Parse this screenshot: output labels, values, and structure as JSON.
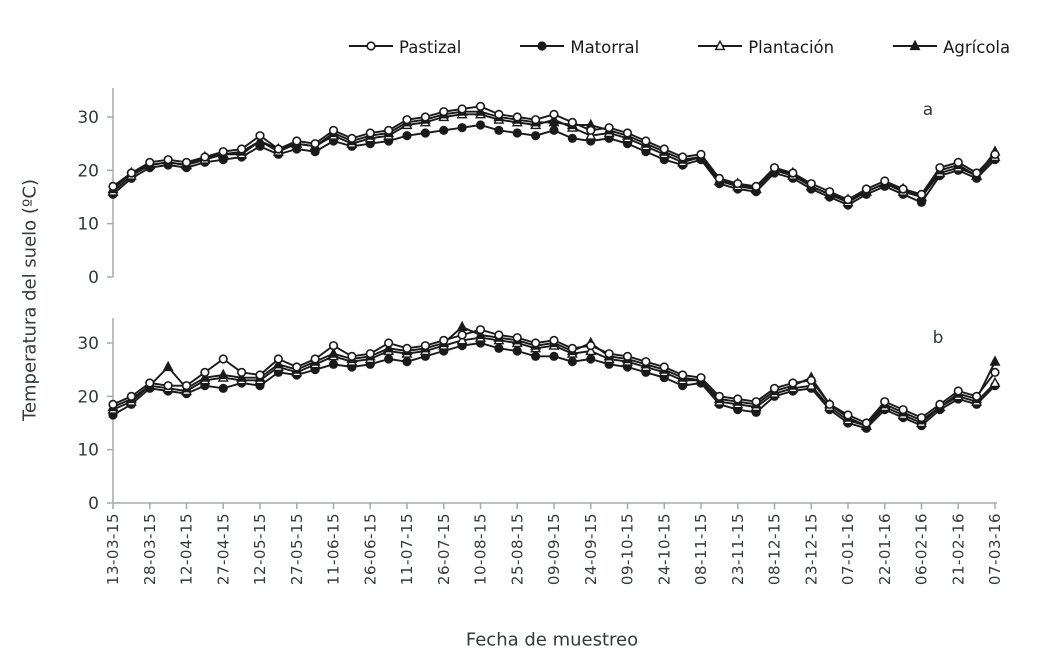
{
  "header": {
    "y_axis_label": "Temperatura del suelo (ºC)",
    "x_axis_label": "Fecha de muestreo"
  },
  "legend": {
    "items": [
      {
        "label": "Pastizal",
        "marker": "circle-open"
      },
      {
        "label": "Matorral",
        "marker": "circle-filled"
      },
      {
        "label": "Plantación",
        "marker": "triangle-open"
      },
      {
        "label": "Agrícola",
        "marker": "triangle-filled"
      }
    ]
  },
  "colors": {
    "line": "#1a1a1a",
    "text": "#323a3a",
    "axis": "#a5abab"
  },
  "chart_data": [
    {
      "type": "line",
      "panel_label": "a",
      "ylabel": "Temperatura del suelo (ºC)",
      "ylim": [
        0,
        35
      ],
      "yticks": [
        0,
        10,
        20,
        30
      ],
      "grid": false,
      "x_tick_labels": [
        "13-03-15",
        "28-03-15",
        "12-04-15",
        "27-04-15",
        "12-05-15",
        "27-05-15",
        "11-06-15",
        "26-06-15",
        "11-07-15",
        "26-07-15",
        "10-08-15",
        "25-08-15",
        "09-09-15",
        "24-09-15",
        "09-10-15",
        "24-10-15",
        "08-11-15",
        "23-11-15",
        "08-12-15",
        "23-12-15",
        "07-01-16",
        "22-01-16",
        "06-02-16",
        "21-02-16",
        "07-03-16"
      ],
      "series": [
        {
          "name": "Pastizal",
          "marker": "circle-open",
          "values": [
            17,
            19.5,
            21.5,
            22,
            21.5,
            22.5,
            23.5,
            24,
            26.5,
            24,
            25.5,
            25,
            27.5,
            26,
            27,
            27.5,
            29.5,
            30,
            31,
            31.5,
            32,
            30.5,
            30,
            29.5,
            30.5,
            29,
            27.5,
            28,
            27,
            25.5,
            24,
            22.5,
            23,
            18.5,
            17.5,
            17,
            20.5,
            19.5,
            17.5,
            16,
            14.5,
            16.5,
            18,
            16.5,
            15.5,
            20.5,
            21.5,
            19.5,
            23
          ]
        },
        {
          "name": "Matorral",
          "marker": "circle-filled",
          "values": [
            15.5,
            18.5,
            20.5,
            21,
            20.5,
            21.5,
            22,
            22.5,
            24.5,
            23,
            24,
            23.5,
            25.5,
            24.5,
            25,
            25.5,
            26.5,
            27,
            27.5,
            28,
            28.5,
            27.5,
            27,
            26.5,
            27.5,
            26,
            25.5,
            26,
            25,
            23.5,
            22,
            21,
            22,
            17.5,
            16.5,
            16,
            19.5,
            18.5,
            16.5,
            15,
            13.5,
            15.5,
            17,
            15.5,
            14,
            19,
            20,
            18.5,
            22
          ]
        },
        {
          "name": "Plantación",
          "marker": "triangle-open",
          "values": [
            16,
            19,
            21,
            21.5,
            21,
            22,
            23,
            23,
            25.5,
            23.5,
            25,
            24.5,
            26.5,
            25,
            26,
            26.5,
            28.5,
            29,
            30,
            30.5,
            30.5,
            29.5,
            29,
            28.5,
            29.5,
            28,
            26.5,
            27,
            26,
            24.5,
            23,
            21.5,
            22.5,
            18,
            17,
            16.5,
            20,
            19,
            17,
            15.5,
            14,
            16,
            17.5,
            16,
            15,
            19.5,
            20.5,
            19,
            22.5
          ]
        },
        {
          "name": "Agrícola",
          "marker": "triangle-filled",
          "values": [
            16.5,
            19.5,
            21,
            21.5,
            21,
            22.5,
            23,
            23.5,
            25.5,
            24,
            25,
            24.5,
            27,
            25.5,
            26.5,
            27,
            29,
            29.5,
            30.5,
            31,
            31,
            30,
            29.5,
            29,
            29,
            28.5,
            28.5,
            27.5,
            26.5,
            25,
            23.5,
            22,
            22.5,
            18,
            17.5,
            16.5,
            20,
            19.5,
            17,
            15.5,
            14.5,
            16,
            17.5,
            16.5,
            15,
            20,
            21,
            19,
            23.5
          ]
        }
      ]
    },
    {
      "type": "line",
      "panel_label": "b",
      "xlabel": "Fecha de muestreo",
      "ylabel": "Temperatura del suelo (ºC)",
      "ylim": [
        0,
        35
      ],
      "yticks": [
        0,
        10,
        20,
        30
      ],
      "grid": false,
      "x_tick_labels": [
        "13-03-15",
        "28-03-15",
        "12-04-15",
        "27-04-15",
        "12-05-15",
        "27-05-15",
        "11-06-15",
        "26-06-15",
        "11-07-15",
        "26-07-15",
        "10-08-15",
        "25-08-15",
        "09-09-15",
        "24-09-15",
        "09-10-15",
        "24-10-15",
        "08-11-15",
        "23-11-15",
        "08-12-15",
        "23-12-15",
        "07-01-16",
        "22-01-16",
        "06-02-16",
        "21-02-16",
        "07-03-16"
      ],
      "series": [
        {
          "name": "Pastizal",
          "marker": "circle-open",
          "values": [
            18.5,
            20,
            22.5,
            22,
            22,
            24.5,
            27,
            24.5,
            24,
            27,
            25.5,
            27,
            29.5,
            27.5,
            28,
            30,
            29,
            29.5,
            30.5,
            31.5,
            32.5,
            31.5,
            31,
            30,
            30.5,
            29,
            29.5,
            28,
            27.5,
            26.5,
            25.5,
            24,
            23.5,
            20,
            19.5,
            19,
            21.5,
            22.5,
            23,
            18.5,
            16.5,
            15,
            19,
            17.5,
            16,
            18.5,
            21,
            20,
            24.5
          ]
        },
        {
          "name": "Matorral",
          "marker": "circle-filled",
          "values": [
            16.5,
            18.5,
            21.5,
            21,
            20.5,
            22,
            21.5,
            22.5,
            22,
            24.5,
            24,
            25,
            26,
            25.5,
            26,
            27,
            26.5,
            27.5,
            28.5,
            29.5,
            30,
            29,
            28.5,
            27.5,
            27.5,
            26.5,
            27,
            26,
            25.5,
            24.5,
            23.5,
            22,
            22.5,
            18.5,
            17.5,
            17,
            20,
            21,
            21.5,
            17.5,
            15,
            14,
            17.5,
            16,
            14.5,
            17.5,
            19.5,
            18.5,
            22
          ]
        },
        {
          "name": "Plantación",
          "marker": "triangle-open",
          "values": [
            17.5,
            19,
            22,
            21.5,
            21,
            23,
            23.5,
            23,
            23,
            25.5,
            24.5,
            26,
            27.5,
            26.5,
            27,
            28.5,
            28,
            28.5,
            29.5,
            30.5,
            31,
            30.5,
            30,
            29,
            29.5,
            28,
            28.5,
            27,
            26.5,
            25.5,
            24.5,
            23,
            23,
            19,
            18.5,
            18,
            20.5,
            21.5,
            22,
            18,
            15.5,
            14.5,
            18,
            16.5,
            15,
            18,
            20,
            19,
            22.5
          ]
        },
        {
          "name": "Agrícola",
          "marker": "triangle-filled",
          "values": [
            18,
            19.5,
            22,
            25.5,
            21.5,
            23.5,
            24,
            23.5,
            23.5,
            26,
            25,
            26.5,
            28,
            27,
            27.5,
            29,
            28.5,
            29,
            30,
            33,
            31.5,
            31,
            30.5,
            29.5,
            30,
            28.5,
            30,
            27.5,
            27,
            26,
            25,
            23.5,
            23,
            19.5,
            19,
            18.5,
            21,
            22,
            23.5,
            18.5,
            16,
            14.5,
            18.5,
            17,
            15.5,
            18,
            20.5,
            19.5,
            26.5
          ]
        }
      ]
    }
  ]
}
